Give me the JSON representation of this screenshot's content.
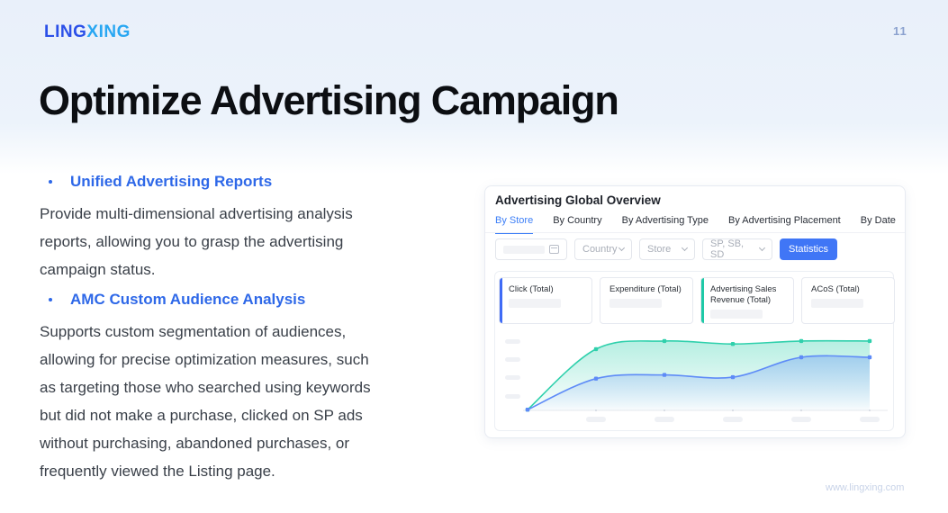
{
  "slide": {
    "logo_part1": "LING",
    "logo_part2": "XING",
    "page_number": "11",
    "title": "Optimize Advertising Campaign",
    "footer_url": "www.lingxing.com"
  },
  "bullets": [
    {
      "heading": "Unified Advertising Reports",
      "lines": [
        "Provide multi-dimensional advertising analysis",
        "reports, allowing you to grasp the advertising",
        "campaign status."
      ]
    },
    {
      "heading": "AMC Custom Audience Analysis",
      "lines": [
        "Supports custom segmentation of audiences,",
        "allowing for precise optimization measures, such",
        "as targeting those who searched using keywords",
        "but did not make a purchase, clicked on SP ads",
        "without purchasing, abandoned purchases, or",
        "frequently viewed the Listing page."
      ]
    }
  ],
  "panel": {
    "title": "Advertising Global Overview",
    "tabs": [
      {
        "label": "By Store",
        "active": true
      },
      {
        "label": "By Country",
        "active": false
      },
      {
        "label": "By Advertising Type",
        "active": false
      },
      {
        "label": "By Advertising Placement",
        "active": false
      },
      {
        "label": "By Date",
        "active": false
      }
    ],
    "filters": {
      "date_input_value": "",
      "date_input_redacted": true,
      "date_icon": "calendar-icon",
      "country_select": "Country",
      "store_select": "Store",
      "ad_type_select": "SP, SB, SD",
      "select_icon": "chevron-down-icon",
      "statistics_button": "Statistics"
    },
    "metrics": [
      {
        "title": "Click (Total)",
        "accent_color": "#3f6bf6",
        "value_redacted": true
      },
      {
        "title": "Expenditure (Total)",
        "accent_color": "",
        "value_redacted": true
      },
      {
        "title": "Advertising Sales Revenue (Total)",
        "accent_color": "#1ec9a7",
        "value_redacted": true
      },
      {
        "title": "ACoS (Total)",
        "accent_color": "",
        "value_redacted": true
      }
    ]
  },
  "chart_data": {
    "type": "area",
    "title": "",
    "xlabel": "",
    "ylabel": "",
    "x": [
      1,
      2,
      3,
      4,
      5,
      6
    ],
    "ylim": [
      0,
      100
    ],
    "grid": false,
    "legend": "none",
    "tick_style": "redacted placeholder pills (4 on y-axis, 5 on x-axis)",
    "y_tick_labels": [
      "",
      "",
      "",
      ""
    ],
    "x_tick_labels": [
      "",
      "",
      "",
      "",
      ""
    ],
    "series": [
      {
        "name": "teal-series",
        "color": "#2fd0ac",
        "values": [
          1,
          83,
          94,
          90,
          94,
          94
        ]
      },
      {
        "name": "blue-series",
        "color": "#5e8bf7",
        "values": [
          1,
          43,
          48,
          45,
          72,
          72
        ]
      }
    ]
  },
  "colors": {
    "logo_primary": "#2b50e8",
    "logo_secondary": "#29a7f2",
    "heading_blue": "#2e68e8",
    "tab_active_blue": "#3d7ff7",
    "statistics_button_blue": "#4076f6",
    "metric_accent_blue": "#3f6bf6",
    "metric_accent_teal": "#1ec9a7",
    "page_number_blue": "#8ca2cf",
    "chart_teal": "#2fd0ac",
    "chart_blue": "#5e8bf7"
  }
}
